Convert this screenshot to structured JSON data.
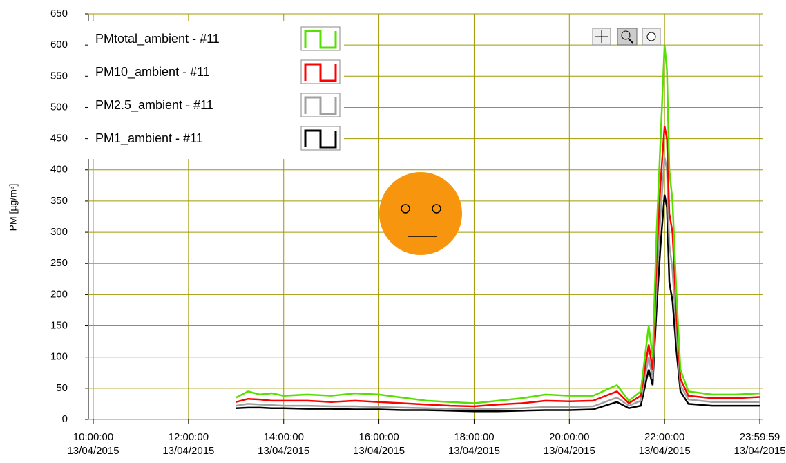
{
  "chart_data": {
    "type": "line",
    "y_label": "PM [µg/m³]",
    "legend": "upper left",
    "grid": true,
    "x": [
      "13/04/2015 13:00:00",
      "13/04/2015 13:15:00",
      "13/04/2015 13:30:00",
      "13/04/2015 13:45:00",
      "13/04/2015 14:00:00",
      "13/04/2015 14:30:00",
      "13/04/2015 15:00:00",
      "13/04/2015 15:30:00",
      "13/04/2015 16:00:00",
      "13/04/2015 16:30:00",
      "13/04/2015 17:00:00",
      "13/04/2015 17:30:00",
      "13/04/2015 18:00:00",
      "13/04/2015 18:30:00",
      "13/04/2015 19:00:00",
      "13/04/2015 19:30:00",
      "13/04/2015 20:00:00",
      "13/04/2015 20:30:00",
      "13/04/2015 21:00:00",
      "13/04/2015 21:15:00",
      "13/04/2015 21:30:00",
      "13/04/2015 21:40:00",
      "13/04/2015 21:45:00",
      "13/04/2015 21:50:00",
      "13/04/2015 21:55:00",
      "13/04/2015 22:00:00",
      "13/04/2015 22:03:00",
      "13/04/2015 22:06:00",
      "13/04/2015 22:10:00",
      "13/04/2015 22:15:00",
      "13/04/2015 22:20:00",
      "13/04/2015 22:30:00",
      "13/04/2015 23:00:00",
      "13/04/2015 23:30:00",
      "13/04/2015 23:59:59"
    ],
    "series": [
      {
        "name": "PMtotal_ambient - #11",
        "color": "#55e000",
        "values": [
          35,
          45,
          40,
          42,
          38,
          40,
          38,
          42,
          40,
          35,
          30,
          28,
          26,
          30,
          34,
          40,
          38,
          38,
          55,
          30,
          45,
          150,
          100,
          300,
          450,
          600,
          560,
          400,
          350,
          200,
          80,
          45,
          40,
          40,
          42
        ]
      },
      {
        "name": "PM10_ambient - #11",
        "color": "#ff0000",
        "values": [
          28,
          33,
          32,
          30,
          30,
          30,
          28,
          30,
          28,
          26,
          24,
          22,
          21,
          24,
          26,
          30,
          29,
          30,
          45,
          26,
          38,
          120,
          80,
          260,
          380,
          470,
          450,
          330,
          300,
          170,
          65,
          38,
          34,
          34,
          36
        ]
      },
      {
        "name": "PM2.5_ambient - #11",
        "color": "#a0a0a0",
        "values": [
          22,
          25,
          24,
          23,
          22,
          22,
          21,
          21,
          20,
          19,
          18,
          17,
          16,
          17,
          18,
          20,
          20,
          21,
          35,
          22,
          30,
          100,
          65,
          220,
          330,
          420,
          400,
          280,
          240,
          140,
          55,
          32,
          28,
          28,
          28
        ]
      },
      {
        "name": "PM1_ambient - #11",
        "color": "#000000",
        "values": [
          18,
          19,
          19,
          18,
          18,
          17,
          17,
          16,
          16,
          15,
          15,
          14,
          13,
          13,
          14,
          15,
          15,
          16,
          28,
          18,
          22,
          80,
          55,
          180,
          280,
          360,
          340,
          220,
          190,
          110,
          45,
          25,
          22,
          22,
          22
        ]
      }
    ],
    "xlim": [
      "13/04/2015 10:00:00",
      "13/04/2015 23:59:59"
    ],
    "xticks": [
      {
        "value": "13/04/2015 10:00:00",
        "label": "10:00:00\n13/04/2015"
      },
      {
        "value": "13/04/2015 12:00:00",
        "label": "12:00:00\n13/04/2015"
      },
      {
        "value": "13/04/2015 14:00:00",
        "label": "14:00:00\n13/04/2015"
      },
      {
        "value": "13/04/2015 16:00:00",
        "label": "16:00:00\n13/04/2015"
      },
      {
        "value": "13/04/2015 18:00:00",
        "label": "18:00:00\n13/04/2015"
      },
      {
        "value": "13/04/2015 20:00:00",
        "label": "20:00:00\n13/04/2015"
      },
      {
        "value": "13/04/2015 22:00:00",
        "label": "22:00:00\n13/04/2015"
      },
      {
        "value": "13/04/2015 23:59:59",
        "label": "23:59:59\n13/04/2015"
      }
    ],
    "ylim": [
      0,
      650
    ],
    "yticks": [
      0,
      50,
      100,
      150,
      200,
      250,
      300,
      350,
      400,
      450,
      500,
      550,
      600,
      650
    ]
  }
}
